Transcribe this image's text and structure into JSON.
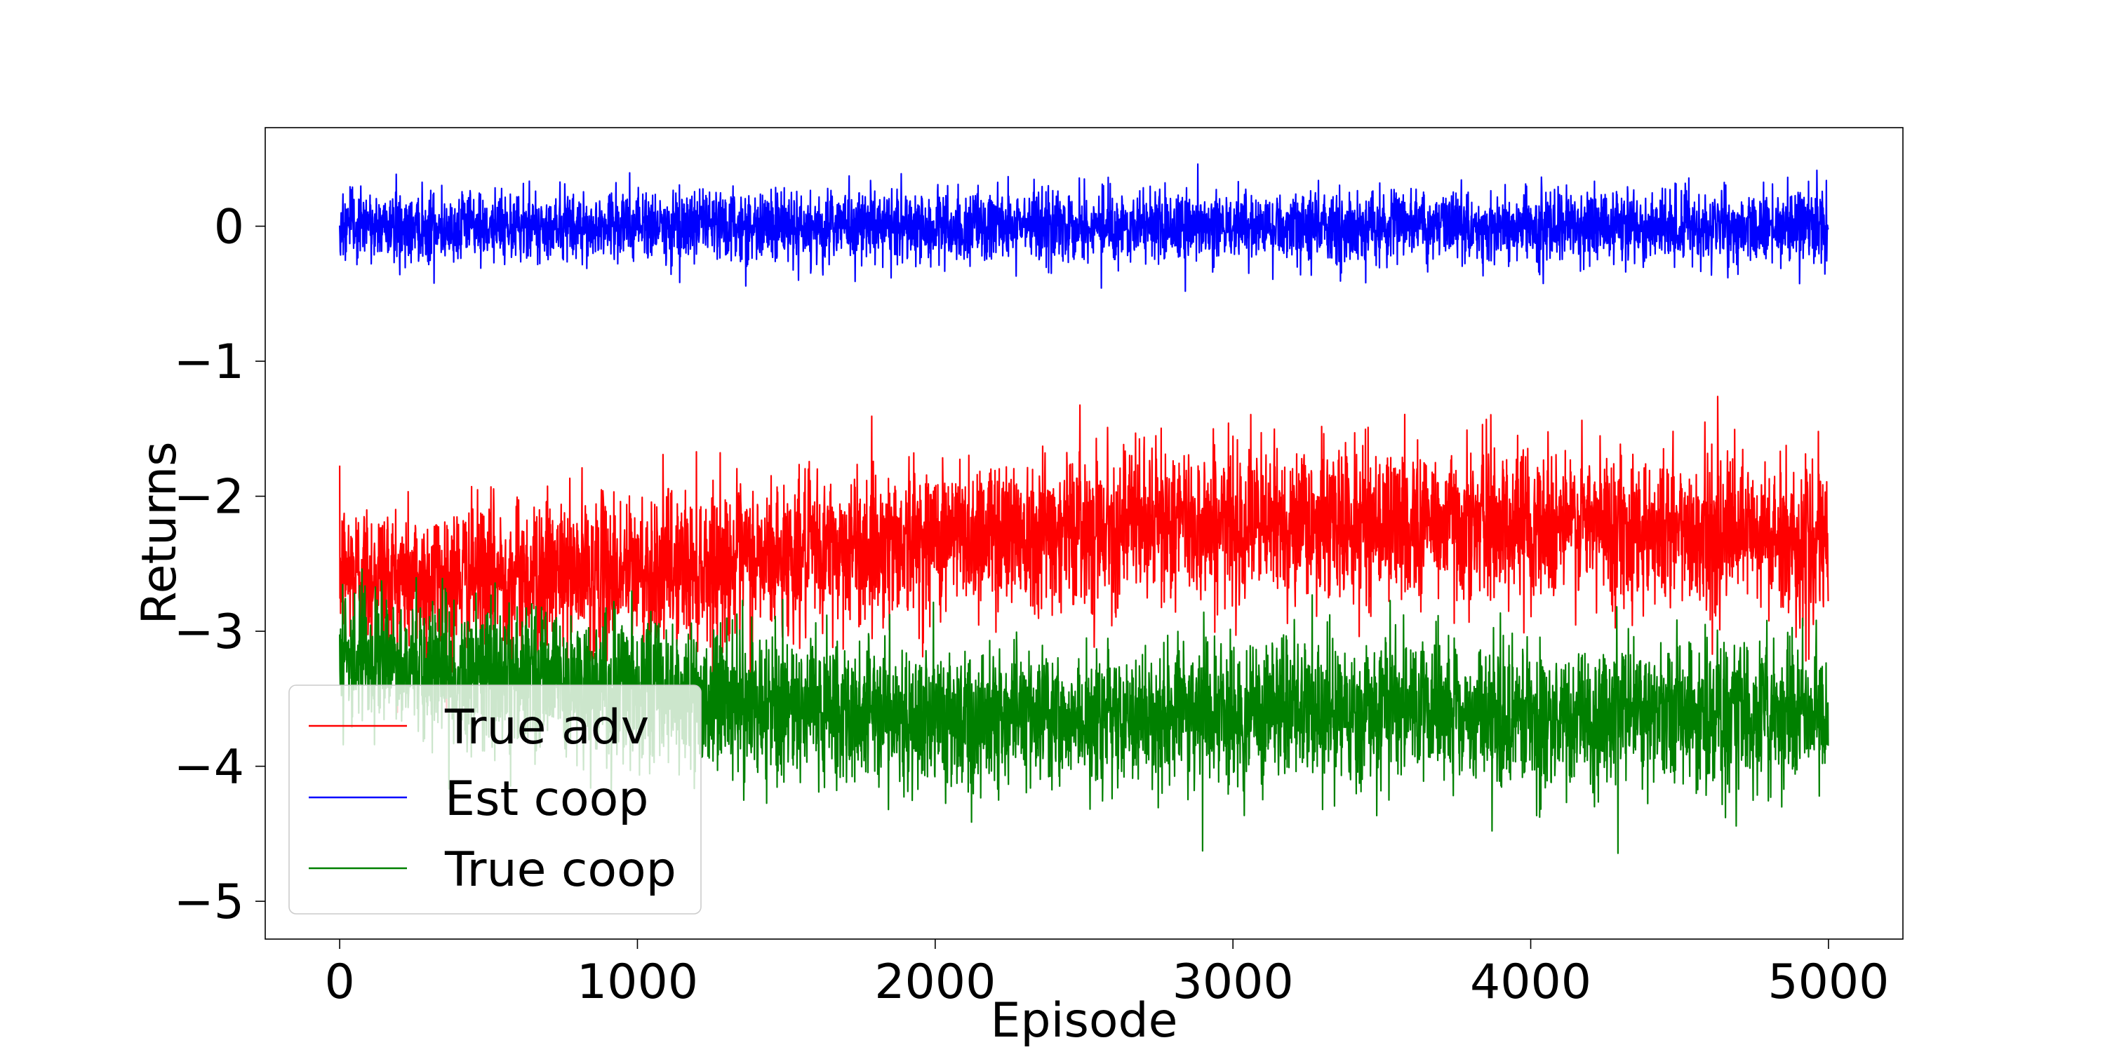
{
  "chart_data": {
    "type": "line",
    "title": "",
    "xlabel": "Episode",
    "ylabel": "Returns",
    "xlim": [
      -250,
      5250
    ],
    "ylim": [
      -5.28,
      0.73
    ],
    "xticks": [
      0,
      1000,
      2000,
      3000,
      4000,
      5000
    ],
    "xtick_labels": [
      "0",
      "1000",
      "2000",
      "3000",
      "4000",
      "5000"
    ],
    "yticks": [
      0,
      -1,
      -2,
      -3,
      -4,
      -5
    ],
    "ytick_labels": [
      "0",
      "−1",
      "−2",
      "−3",
      "−4",
      "−5"
    ],
    "grid": false,
    "legend_position": "lower-left",
    "n_points": 5000,
    "series_sampling_note": "",
    "series": [
      {
        "name": "True adv",
        "color": "#ff0000",
        "x": [
          0,
          250,
          500,
          750,
          1000,
          1250,
          1500,
          1750,
          2000,
          2250,
          2500,
          2750,
          3000,
          3250,
          3500,
          3750,
          4000,
          4250,
          4500,
          4750,
          5000
        ],
        "trend": [
          -2.55,
          -2.62,
          -2.6,
          -2.58,
          -2.55,
          -2.5,
          -2.45,
          -2.38,
          -2.3,
          -2.25,
          -2.22,
          -2.2,
          -2.2,
          -2.2,
          -2.2,
          -2.2,
          -2.2,
          -2.22,
          -2.25,
          -2.3,
          -2.38
        ],
        "spread": 0.28,
        "max": -1.2,
        "min": -3.6
      },
      {
        "name": "Est coop",
        "color": "#0000ff",
        "x": [
          0,
          1000,
          2000,
          3000,
          4000,
          5000
        ],
        "trend": [
          0.0,
          0.0,
          0.0,
          0.0,
          0.0,
          0.0
        ],
        "spread": 0.13,
        "max": 0.46,
        "min": -0.66
      },
      {
        "name": "True coop",
        "color": "#008000",
        "x": [
          0,
          250,
          500,
          750,
          1000,
          1250,
          1500,
          1750,
          2000,
          2250,
          2500,
          2750,
          3000,
          3250,
          3500,
          3750,
          4000,
          4250,
          4500,
          4750,
          5000
        ],
        "trend": [
          -3.15,
          -3.25,
          -3.3,
          -3.38,
          -3.45,
          -3.52,
          -3.58,
          -3.6,
          -3.62,
          -3.62,
          -3.62,
          -3.62,
          -3.62,
          -3.62,
          -3.62,
          -3.62,
          -3.62,
          -3.62,
          -3.62,
          -3.62,
          -3.62
        ],
        "spread": 0.26,
        "max": -2.45,
        "min": -5.0
      }
    ]
  }
}
